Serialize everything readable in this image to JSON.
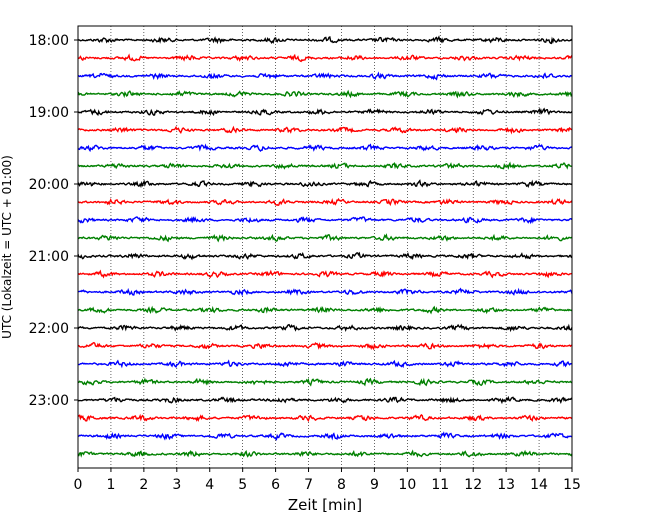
{
  "chart_data": {
    "type": "line",
    "title": "",
    "xlabel": "Zeit  [min]",
    "ylabel": "UTC (Lokalzeit = UTC + 01:00)",
    "xlim": [
      0,
      15
    ],
    "x_ticks": [
      0,
      1,
      2,
      3,
      4,
      5,
      6,
      7,
      8,
      9,
      10,
      11,
      12,
      13,
      14,
      15
    ],
    "y_tick_labels": [
      "18:00",
      "19:00",
      "20:00",
      "21:00",
      "22:00",
      "23:00"
    ],
    "traces_per_hour": 4,
    "trace_minutes": 15,
    "trace_start_times": [
      "18:00",
      "18:15",
      "18:30",
      "18:45",
      "19:00",
      "19:15",
      "19:30",
      "19:45",
      "20:00",
      "20:15",
      "20:30",
      "20:45",
      "21:00",
      "21:15",
      "21:30",
      "21:45",
      "22:00",
      "22:15",
      "22:30",
      "22:45",
      "23:00",
      "23:15",
      "23:30",
      "23:45"
    ],
    "colors": [
      "#000000",
      "#ff0000",
      "#0000ff",
      "#008000"
    ],
    "grid": "vertical dotted",
    "legend": "none"
  }
}
